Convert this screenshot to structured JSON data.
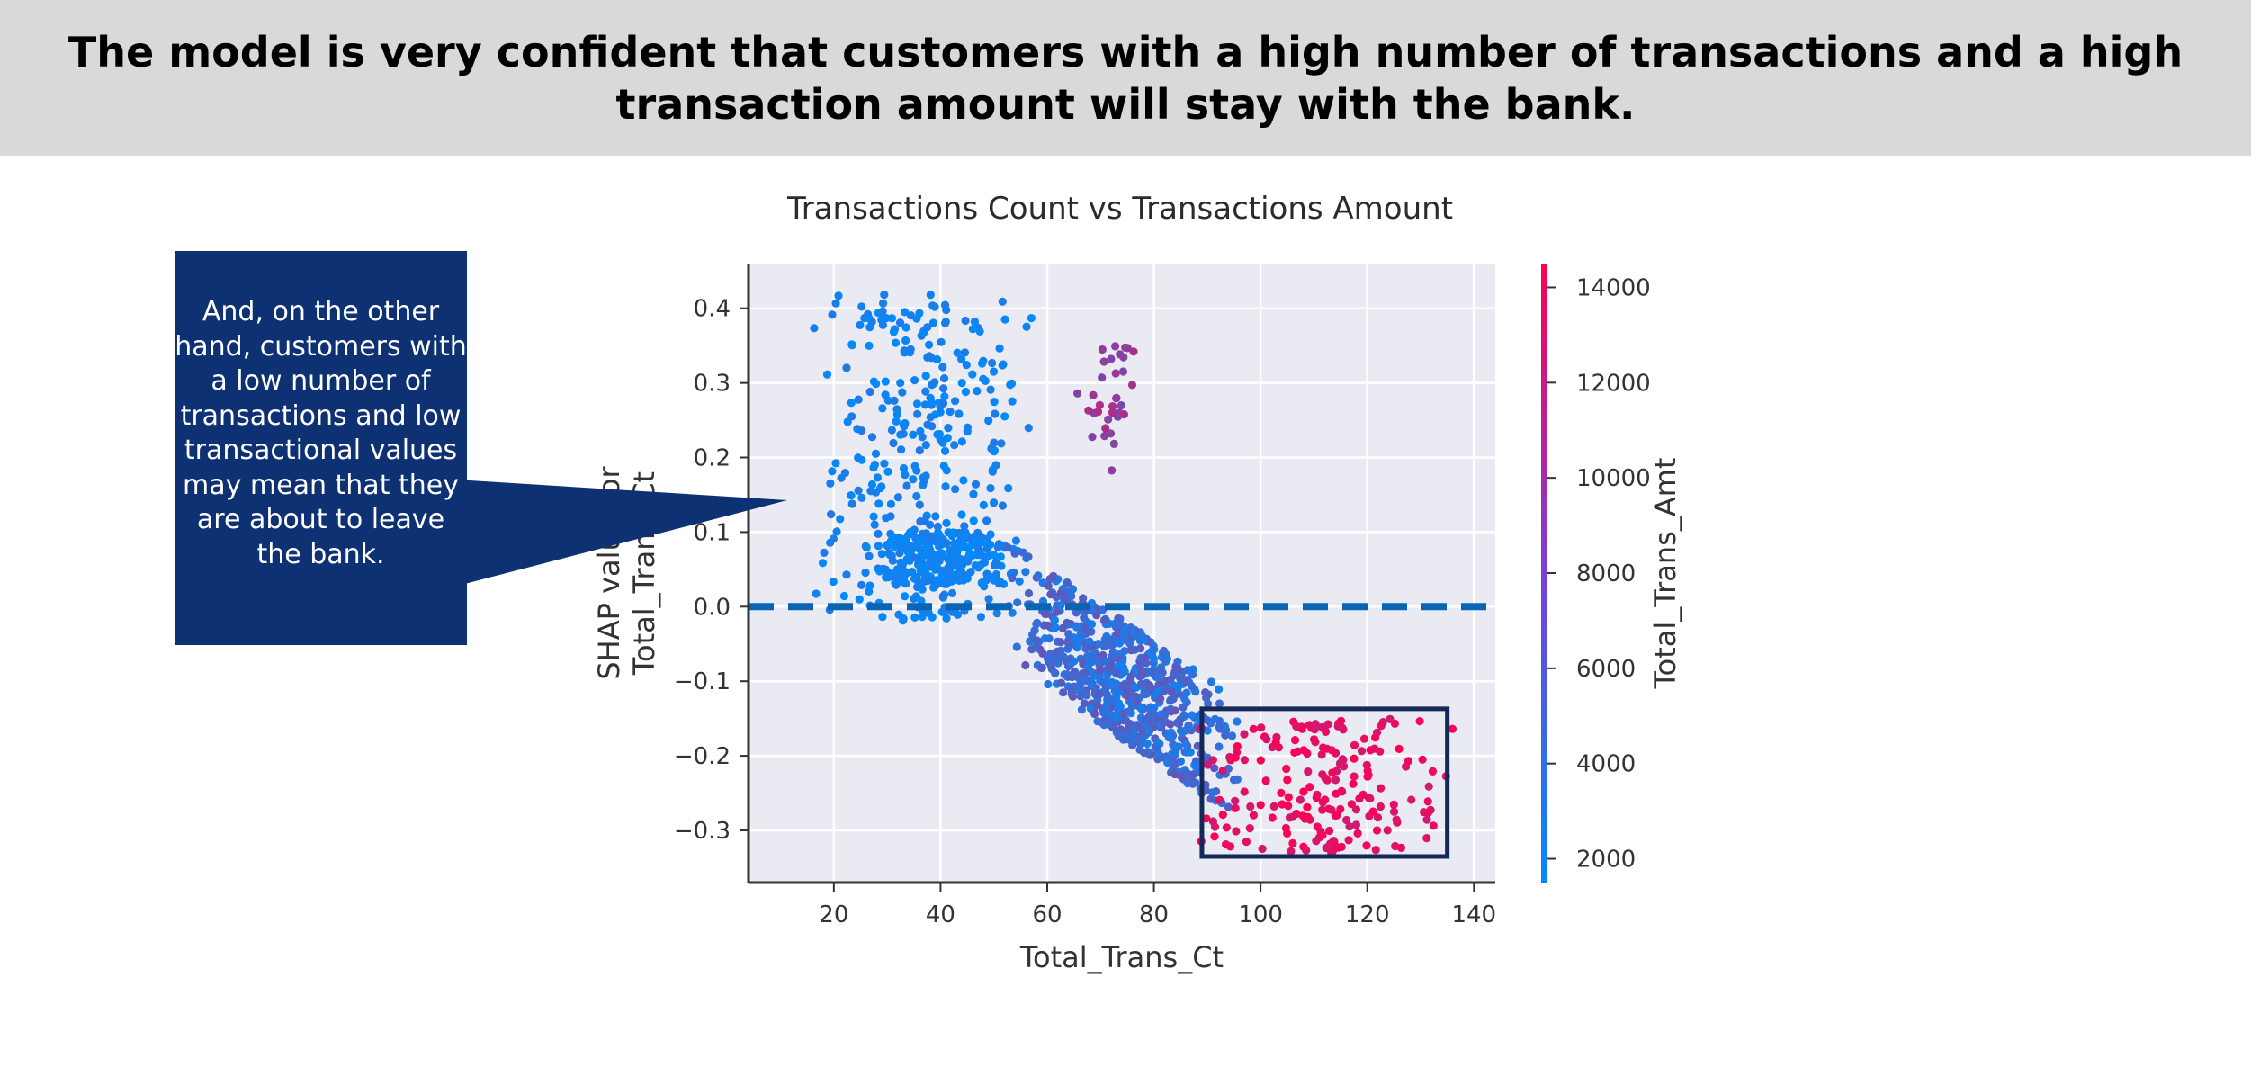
{
  "banner": {
    "title": "The model is very confident that customers with a high number of transactions and a high transaction amount will stay with the bank."
  },
  "callout": {
    "text": "And, on the other hand, customers with a low number of transactions and low transactional values may mean that they are about to leave the bank."
  },
  "colors": {
    "banner_bg": "#d9d9d9",
    "callout_bg": "#0d3172",
    "zero_line": "#0a64b4",
    "highlight_box": "#14285a",
    "plot_bg": "#eaeaf2",
    "cmap_low": "#008bfb",
    "cmap_high": "#ff0052"
  },
  "chart_data": {
    "type": "scatter",
    "title": "Transactions Count vs Transactions Amount",
    "xlabel": "Total_Trans_Ct",
    "ylabel_line1": "SHAP value for",
    "ylabel_line2": "Total_Trans_Ct",
    "colorbar_label": "Total_Trans_Amt",
    "xlim": [
      4,
      144
    ],
    "ylim": [
      -0.37,
      0.46
    ],
    "x_ticks": [
      20,
      40,
      60,
      80,
      100,
      120,
      140
    ],
    "y_ticks": [
      -0.3,
      -0.2,
      -0.1,
      0.0,
      0.1,
      0.2,
      0.3,
      0.4
    ],
    "y_tick_labels": [
      "−0.3",
      "−0.2",
      "−0.1",
      "0.0",
      "0.1",
      "0.2",
      "0.3",
      "0.4"
    ],
    "colorbar_ticks": [
      2000,
      4000,
      6000,
      8000,
      10000,
      12000,
      14000
    ],
    "colorbar_range": [
      1500,
      14500
    ],
    "grid": true,
    "zero_line_y": 0.0,
    "highlight_region": {
      "x": [
        89,
        135
      ],
      "y": [
        -0.335,
        -0.137
      ]
    },
    "clusters": [
      {
        "name": "low_count_positive",
        "count": 330,
        "x": [
          15,
          58
        ],
        "y": [
          -0.02,
          0.42
        ],
        "amt": [
          1500,
          3200
        ]
      },
      {
        "name": "low_count_dense",
        "count": 260,
        "x": [
          25,
          55
        ],
        "y": [
          0.03,
          0.1
        ],
        "amt": [
          1500,
          3000
        ]
      },
      {
        "name": "mid_purple_group",
        "count": 35,
        "x": [
          64,
          79
        ],
        "y": [
          0.17,
          0.35
        ],
        "amt": [
          7500,
          10500
        ]
      },
      {
        "name": "transition_band",
        "count": 680,
        "x": [
          52,
          97
        ],
        "y": [
          -0.24,
          0.03
        ],
        "amt": [
          2500,
          6500
        ]
      },
      {
        "name": "high_count_high_amount",
        "count": 200,
        "x": [
          87,
          137
        ],
        "y": [
          -0.33,
          -0.15
        ],
        "amt": [
          12000,
          14500
        ]
      }
    ]
  }
}
